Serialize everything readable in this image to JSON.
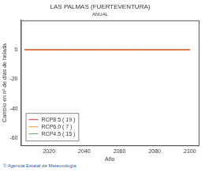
{
  "chart_data": {
    "type": "line",
    "title": "LAS PALMAS (FUERTEVENTURA)",
    "subtitle": "ANUAL",
    "xlabel": "Año",
    "ylabel": "Cambio en nº de días de helada",
    "source": "© Agencia Estatal de Meteorología",
    "x": [
      2006,
      2007,
      2008,
      2009,
      2010,
      2011,
      2012,
      2013,
      2014,
      2015,
      2016,
      2017,
      2018,
      2019,
      2020,
      2021,
      2022,
      2023,
      2024,
      2025,
      2026,
      2027,
      2028,
      2029,
      2030,
      2031,
      2032,
      2033,
      2034,
      2035,
      2036,
      2037,
      2038,
      2039,
      2040,
      2041,
      2042,
      2043,
      2044,
      2045,
      2046,
      2047,
      2048,
      2049,
      2050,
      2051,
      2052,
      2053,
      2054,
      2055,
      2056,
      2057,
      2058,
      2059,
      2060,
      2061,
      2062,
      2063,
      2064,
      2065,
      2066,
      2067,
      2068,
      2069,
      2070,
      2071,
      2072,
      2073,
      2074,
      2075,
      2076,
      2077,
      2078,
      2079,
      2080,
      2081,
      2082,
      2083,
      2084,
      2085,
      2086,
      2087,
      2088,
      2089,
      2090,
      2091,
      2092,
      2093,
      2094,
      2095,
      2096,
      2097,
      2098,
      2099,
      2100
    ],
    "series": [
      {
        "name": "RCP8.5 ( 19 )",
        "color": "#e8332a",
        "values": [
          0,
          0,
          0,
          0,
          0,
          0,
          0,
          0,
          0,
          0,
          0,
          0,
          0,
          0,
          0,
          0,
          0,
          0,
          0,
          0,
          0,
          0,
          0,
          0,
          0,
          0,
          0,
          0,
          0,
          0,
          0,
          0,
          0,
          0,
          0,
          0,
          0,
          0,
          0,
          0,
          0,
          0,
          0,
          0,
          0,
          0,
          0,
          0,
          0,
          0,
          0,
          0,
          0,
          0,
          0,
          0,
          0,
          0,
          0,
          0,
          0,
          0,
          0,
          0,
          0,
          0,
          0,
          0,
          0,
          0,
          0,
          0,
          0,
          0,
          0,
          0,
          0,
          0,
          0,
          0,
          0,
          0,
          0,
          0,
          0,
          0,
          0,
          0,
          0,
          0,
          0,
          0,
          0,
          0,
          0
        ]
      },
      {
        "name": "RCP6.0 ( 7 )",
        "color": "#f0a030",
        "values": [
          0,
          0,
          0,
          0,
          0,
          0,
          0,
          0,
          0,
          0,
          0,
          0,
          0,
          0,
          0,
          0,
          0,
          0,
          0,
          0,
          0,
          0,
          0,
          0,
          0,
          0,
          0,
          0,
          0,
          0,
          0,
          0,
          0,
          0,
          0,
          0,
          0,
          0,
          0,
          0,
          0,
          0,
          0,
          0,
          0,
          0,
          0,
          0,
          0,
          0,
          0,
          0,
          0,
          0,
          0,
          0,
          0,
          0,
          0,
          0,
          0,
          0,
          0,
          0,
          0,
          0,
          0,
          0,
          0,
          0,
          0,
          0,
          0,
          0,
          0,
          0,
          0,
          0,
          0,
          0,
          0,
          0,
          0,
          0,
          0,
          0,
          0,
          0,
          0,
          0,
          0,
          0,
          0,
          0,
          0
        ]
      },
      {
        "name": "RCP4.5 ( 15 )",
        "color": "#55a868",
        "values": [
          0,
          0,
          0,
          0,
          0,
          0,
          0,
          0,
          0,
          0,
          0,
          0,
          0,
          0,
          0,
          0,
          0,
          0,
          0,
          0,
          0,
          0,
          0,
          0,
          0,
          0,
          0,
          0,
          0,
          0,
          0,
          0,
          0,
          0,
          0,
          0,
          0,
          0,
          0,
          0,
          0,
          0,
          0,
          0,
          0,
          0,
          0,
          0,
          0,
          0,
          0,
          0,
          0,
          0,
          0,
          0,
          0,
          0,
          0,
          0,
          0,
          0,
          0,
          0,
          0,
          0,
          0,
          0,
          0,
          0,
          0,
          0,
          0,
          0,
          0,
          0,
          0,
          0,
          0,
          0,
          0,
          0,
          0,
          0,
          0,
          0,
          0,
          0,
          0,
          0,
          0,
          0,
          0,
          0,
          0
        ]
      }
    ],
    "xlim": [
      2004,
      2105
    ],
    "xticks": [
      2020,
      2040,
      2060,
      2080,
      2100
    ],
    "ylim": [
      -65,
      20
    ],
    "yticks": [
      -60,
      -40,
      -20,
      0
    ],
    "grid": false,
    "legend": "lower left"
  }
}
